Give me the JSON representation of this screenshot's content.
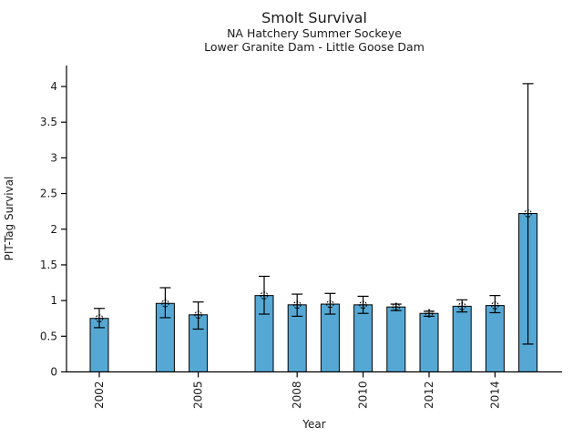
{
  "chart": {
    "title": "Smolt Survival",
    "subtitle1": "NA Hatchery Summer Sockeye",
    "subtitle2": "Lower Granite Dam - Little Goose Dam",
    "xlabel": "Year",
    "ylabel": "PIT-Tag Survival"
  },
  "chart_data": {
    "type": "bar",
    "title": "Smolt Survival",
    "subtitles": [
      "NA Hatchery Summer Sockeye",
      "Lower Granite Dam - Little Goose Dam"
    ],
    "xlabel": "Year",
    "ylabel": "PIT-Tag Survival",
    "grid": false,
    "legend": "none",
    "xlim": [
      2001,
      2016
    ],
    "ylim": [
      0,
      4.3
    ],
    "yticks": [
      0,
      0.5,
      1,
      1.5,
      2,
      2.5,
      3,
      3.5,
      4
    ],
    "ytick_labels": [
      "0",
      "0.5",
      "1",
      "1.5",
      "2",
      "2.5",
      "3",
      "3.5",
      "4"
    ],
    "xtick_years_labeled": [
      2002,
      2005,
      2008,
      2010,
      2012,
      2014
    ],
    "bar_fill_color": "#56a8d4",
    "bar_edge_color": "#000000",
    "errorbar_color": "#000000",
    "marker": "open-circle-cross",
    "series": [
      {
        "name": "PIT-Tag Survival",
        "points": [
          {
            "year": 2002,
            "value": 0.75,
            "ci_low": 0.62,
            "ci_high": 0.89
          },
          {
            "year": 2004,
            "value": 0.96,
            "ci_low": 0.76,
            "ci_high": 1.18
          },
          {
            "year": 2005,
            "value": 0.8,
            "ci_low": 0.6,
            "ci_high": 0.98
          },
          {
            "year": 2007,
            "value": 1.07,
            "ci_low": 0.81,
            "ci_high": 1.34
          },
          {
            "year": 2008,
            "value": 0.94,
            "ci_low": 0.78,
            "ci_high": 1.09
          },
          {
            "year": 2009,
            "value": 0.95,
            "ci_low": 0.81,
            "ci_high": 1.1
          },
          {
            "year": 2010,
            "value": 0.94,
            "ci_low": 0.82,
            "ci_high": 1.06
          },
          {
            "year": 2011,
            "value": 0.91,
            "ci_low": 0.86,
            "ci_high": 0.95
          },
          {
            "year": 2012,
            "value": 0.82,
            "ci_low": 0.78,
            "ci_high": 0.85
          },
          {
            "year": 2013,
            "value": 0.92,
            "ci_low": 0.84,
            "ci_high": 1.01
          },
          {
            "year": 2014,
            "value": 0.93,
            "ci_low": 0.83,
            "ci_high": 1.07
          },
          {
            "year": 2015,
            "value": 2.22,
            "ci_low": 0.39,
            "ci_high": 4.04
          }
        ]
      }
    ]
  }
}
